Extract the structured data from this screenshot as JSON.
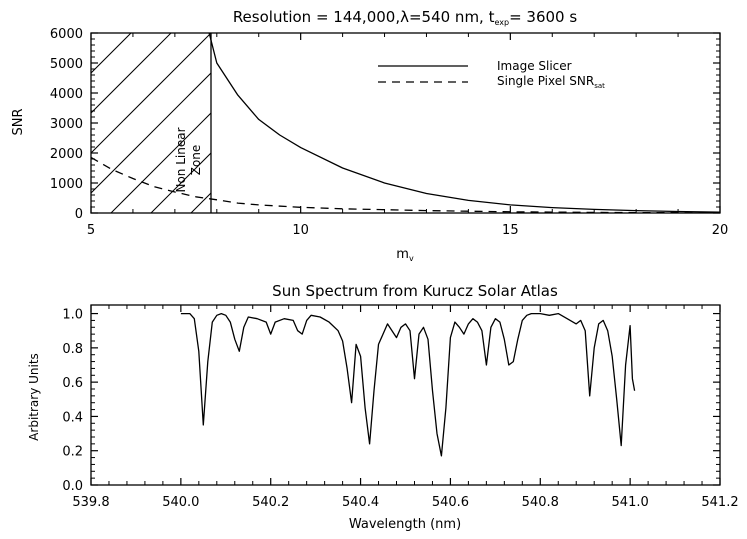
{
  "chart_data": [
    {
      "type": "line",
      "title": "Resolution = 144,000,λ=540 nm, t",
      "title_sub": "exp",
      "title_tail": "= 3600 s",
      "xlabel": "m",
      "xlabel_sub": "v",
      "ylabel": "SNR",
      "xlim": [
        5,
        20
      ],
      "ylim": [
        0,
        6000
      ],
      "x_ticks": [
        "5",
        "10",
        "15",
        "20"
      ],
      "y_ticks": [
        "0",
        "1000",
        "2000",
        "3000",
        "4000",
        "5000",
        "6000"
      ],
      "zone_label": [
        "Non Linear",
        "Zone"
      ],
      "zone_x_range": [
        5,
        8
      ],
      "legend_position": "top-right",
      "series": [
        {
          "name": "Image Slicer",
          "style": "solid",
          "x": [
            7.8,
            8.0,
            8.5,
            9.0,
            9.5,
            10.0,
            11.0,
            12.0,
            13.0,
            14.0,
            15.0,
            16.0,
            17.0,
            18.0,
            19.0,
            20.0
          ],
          "y": [
            6100,
            5000,
            3930,
            3120,
            2600,
            2180,
            1500,
            1000,
            650,
            420,
            270,
            180,
            120,
            80,
            50,
            30
          ]
        },
        {
          "name": "Single Pixel SNR",
          "name_sub": "sat",
          "style": "dashed",
          "x": [
            5.0,
            5.5,
            6.0,
            6.5,
            7.0,
            7.5,
            8.0,
            8.5,
            9.0,
            10.0,
            11.0,
            12.0,
            13.0,
            14.0,
            15.0,
            16.0,
            17.0,
            18.0,
            19.0,
            20.0
          ],
          "y": [
            1850,
            1450,
            1150,
            880,
            700,
            540,
            440,
            330,
            270,
            190,
            140,
            110,
            80,
            60,
            40,
            30,
            20,
            15,
            10,
            8
          ]
        }
      ]
    },
    {
      "type": "line",
      "title": "Sun Spectrum from Kurucz Solar Atlas",
      "xlabel": "Wavelength (nm)",
      "ylabel": "Arbitrary Units",
      "xlim": [
        539.8,
        541.2
      ],
      "ylim": [
        0,
        1.05
      ],
      "x_ticks": [
        "539.8",
        "540.0",
        "540.2",
        "540.4",
        "540.6",
        "540.8",
        "541.0",
        "541.2"
      ],
      "y_ticks": [
        "0.0",
        "0.2",
        "0.4",
        "0.6",
        "0.8",
        "1.0"
      ],
      "series": [
        {
          "name": "",
          "style": "solid",
          "x": [
            540.0,
            540.01,
            540.02,
            540.03,
            540.04,
            540.05,
            540.06,
            540.07,
            540.08,
            540.09,
            540.1,
            540.11,
            540.12,
            540.13,
            540.14,
            540.15,
            540.17,
            540.19,
            540.2,
            540.21,
            540.23,
            540.25,
            540.26,
            540.27,
            540.28,
            540.29,
            540.31,
            540.33,
            540.35,
            540.36,
            540.37,
            540.38,
            540.39,
            540.4,
            540.41,
            540.42,
            540.43,
            540.44,
            540.46,
            540.48,
            540.49,
            540.5,
            540.51,
            540.52,
            540.53,
            540.54,
            540.55,
            540.56,
            540.57,
            540.58,
            540.59,
            540.6,
            540.61,
            540.62,
            540.63,
            540.64,
            540.65,
            540.66,
            540.67,
            540.68,
            540.69,
            540.7,
            540.71,
            540.72,
            540.73,
            540.74,
            540.75,
            540.76,
            540.77,
            540.78,
            540.8,
            540.82,
            540.84,
            540.86,
            540.88,
            540.89,
            540.9,
            540.91,
            540.92,
            540.93,
            540.94,
            540.95,
            540.96,
            540.97,
            540.98,
            540.99,
            541.0,
            541.005,
            541.01
          ],
          "y": [
            1.0,
            1.0,
            1.0,
            0.97,
            0.78,
            0.35,
            0.72,
            0.95,
            0.99,
            1.0,
            0.99,
            0.95,
            0.85,
            0.78,
            0.92,
            0.98,
            0.97,
            0.95,
            0.88,
            0.95,
            0.97,
            0.96,
            0.9,
            0.88,
            0.96,
            0.99,
            0.98,
            0.95,
            0.9,
            0.84,
            0.68,
            0.48,
            0.82,
            0.75,
            0.45,
            0.24,
            0.55,
            0.82,
            0.94,
            0.86,
            0.92,
            0.94,
            0.9,
            0.62,
            0.88,
            0.92,
            0.85,
            0.55,
            0.3,
            0.17,
            0.45,
            0.86,
            0.95,
            0.92,
            0.88,
            0.94,
            0.97,
            0.95,
            0.9,
            0.7,
            0.92,
            0.97,
            0.95,
            0.85,
            0.7,
            0.72,
            0.85,
            0.96,
            0.99,
            1.0,
            1.0,
            0.99,
            1.0,
            0.97,
            0.94,
            0.96,
            0.9,
            0.52,
            0.8,
            0.94,
            0.96,
            0.9,
            0.75,
            0.5,
            0.23,
            0.7,
            0.93,
            0.62,
            0.55
          ]
        }
      ]
    }
  ]
}
